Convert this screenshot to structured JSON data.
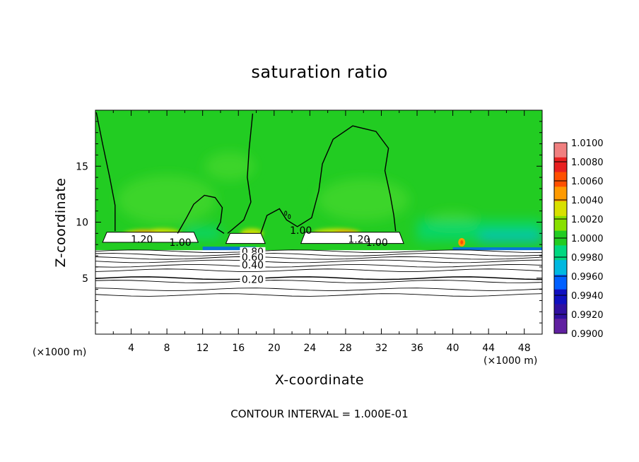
{
  "chart_data": {
    "type": "heatmap",
    "title": "saturation ratio",
    "xlabel": "X-coordinate",
    "ylabel": "Z-coordinate",
    "x_unit": "(×1000 m)",
    "footer": "CONTOUR INTERVAL = 1.000E-01",
    "xlim": [
      0,
      50
    ],
    "ylim": [
      0,
      20
    ],
    "x_ticks": [
      4,
      8,
      12,
      16,
      20,
      24,
      28,
      32,
      36,
      40,
      44,
      48
    ],
    "y_ticks": [
      5,
      10,
      15
    ],
    "colorbar": {
      "min": 0.99,
      "max": 1.01,
      "labels": [
        "1.0100",
        "1.0080",
        "1.0060",
        "1.0040",
        "1.0020",
        "1.0000",
        "0.9980",
        "0.9960",
        "0.9940",
        "0.9920",
        "0.9900"
      ],
      "colors": [
        "#f08080",
        "#e82020",
        "#ff5000",
        "#ff9a00",
        "#d8e000",
        "#88e000",
        "#22cc22",
        "#00d880",
        "#00b8e0",
        "#0060ff",
        "#1010c0",
        "#3010a0",
        "#6020a0"
      ]
    },
    "contour_labels": [
      {
        "text": "1.20",
        "x": 5.2,
        "z": 8.3
      },
      {
        "text": "1.00",
        "x": 9.5,
        "z": 8.0
      },
      {
        "text": "1.00",
        "x": 23.0,
        "z": 9.1
      },
      {
        "text": "1.20",
        "x": 29.5,
        "z": 8.3
      },
      {
        "text": "1.00",
        "x": 31.5,
        "z": 8.0
      },
      {
        "text": "0.80",
        "x": 17.6,
        "z": 7.2
      },
      {
        "text": "0.60",
        "x": 17.6,
        "z": 6.7
      },
      {
        "text": "0.40",
        "x": 17.6,
        "z": 6.0
      },
      {
        "text": "0.20",
        "x": 17.6,
        "z": 4.7
      }
    ],
    "subsaturated_layer_top_z": 7.5
  }
}
